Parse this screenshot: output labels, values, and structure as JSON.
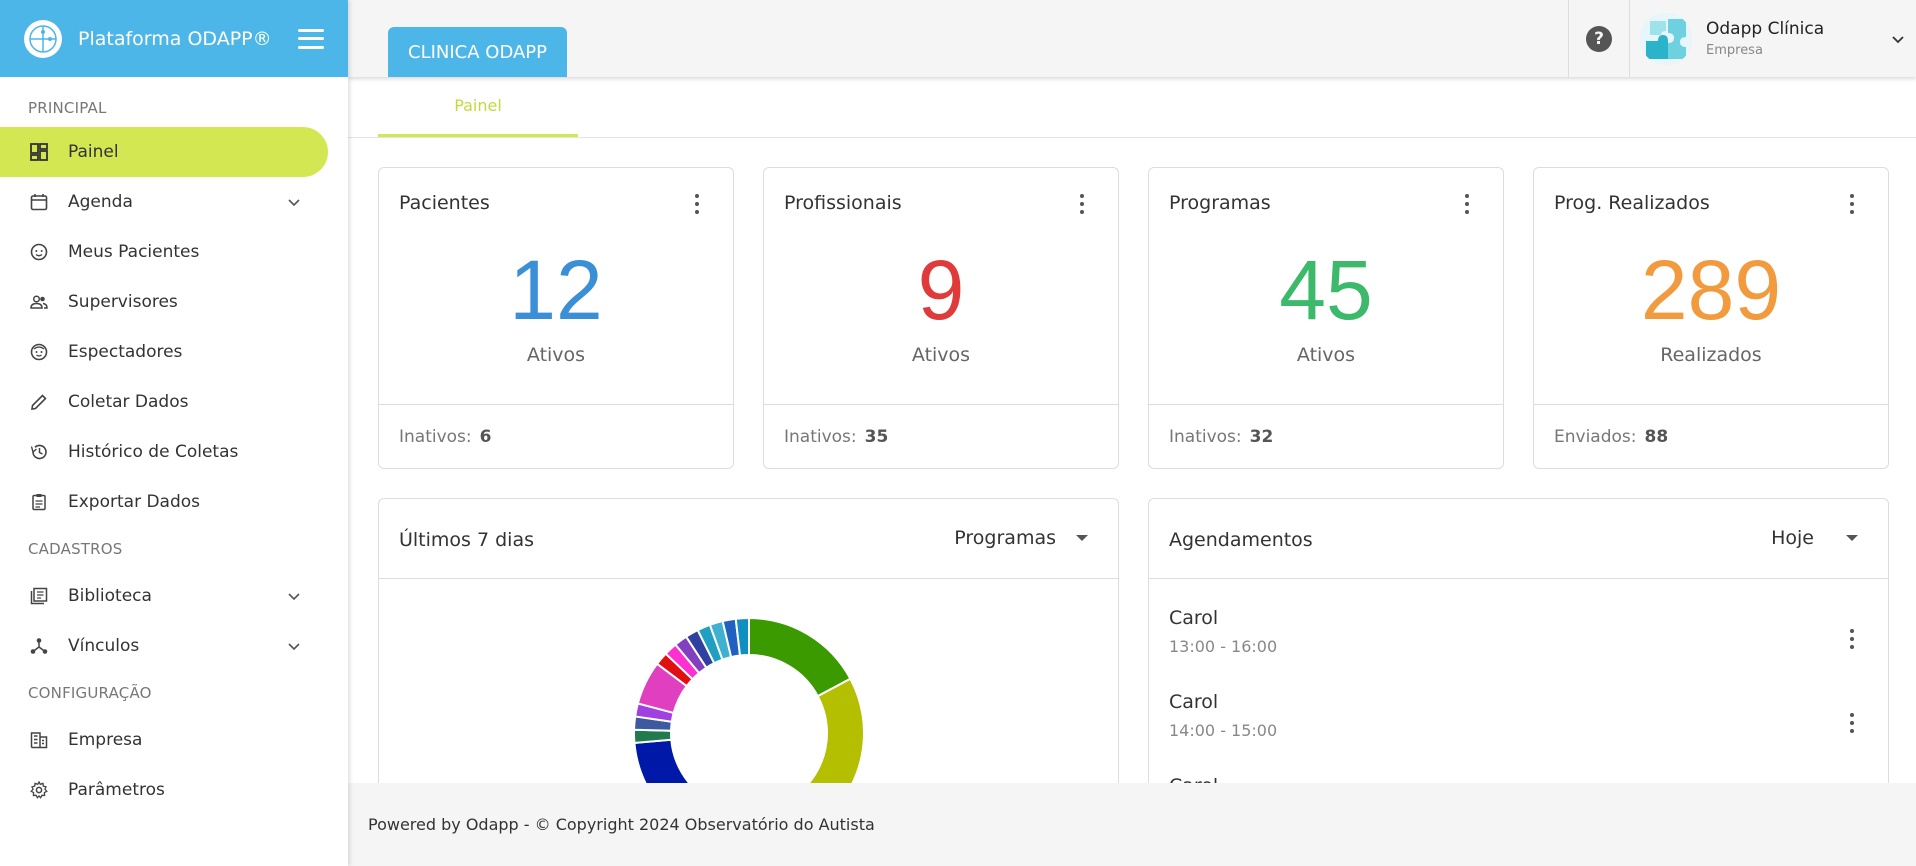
{
  "brand": {
    "title": "Plataforma ODAPP®"
  },
  "sidebar": {
    "sections": {
      "principal": "PRINCIPAL",
      "cadastros": "CADASTROS",
      "configuracao": "CONFIGURAÇÃO"
    },
    "items": [
      {
        "label": "Painel",
        "icon": "dashboard-icon"
      },
      {
        "label": "Agenda",
        "icon": "calendar-icon"
      },
      {
        "label": "Meus Pacientes",
        "icon": "face-icon"
      },
      {
        "label": "Supervisores",
        "icon": "people-icon"
      },
      {
        "label": "Espectadores",
        "icon": "smile-icon"
      },
      {
        "label": "Coletar Dados",
        "icon": "pencil-icon"
      },
      {
        "label": "Histórico de Coletas",
        "icon": "history-icon"
      },
      {
        "label": "Exportar Dados",
        "icon": "clipboard-icon"
      },
      {
        "label": "Biblioteca",
        "icon": "library-icon"
      },
      {
        "label": "Vínculos",
        "icon": "hub-icon"
      },
      {
        "label": "Empresa",
        "icon": "building-icon"
      },
      {
        "label": "Parâmetros",
        "icon": "gear-icon"
      }
    ]
  },
  "header": {
    "company_tab": "CLINICA ODAPP",
    "help": "?",
    "user": {
      "name": "Odapp Clínica",
      "role": "Empresa"
    }
  },
  "main": {
    "subtab": "Painel",
    "stats": [
      {
        "title": "Pacientes",
        "value": "12",
        "label": "Ativos",
        "footer_label": "Inativos:",
        "footer_value": "6",
        "color": "#3a8fd6"
      },
      {
        "title": "Profissionais",
        "value": "9",
        "label": "Ativos",
        "footer_label": "Inativos:",
        "footer_value": "35",
        "color": "#e03b3b"
      },
      {
        "title": "Programas",
        "value": "45",
        "label": "Ativos",
        "footer_label": "Inativos:",
        "footer_value": "32",
        "color": "#3cb96a"
      },
      {
        "title": "Prog. Realizados",
        "value": "289",
        "label": "Realizados",
        "footer_label": "Enviados:",
        "footer_value": "88",
        "color": "#f19a3e"
      }
    ],
    "chart_panel": {
      "title": "Últimos 7 dias",
      "filter": "Programas"
    },
    "appointments": {
      "title": "Agendamentos",
      "filter": "Hoje",
      "items": [
        {
          "name": "Carol",
          "time": "13:00 - 16:00"
        },
        {
          "name": "Carol",
          "time": "14:00 - 15:00"
        },
        {
          "name": "Carol",
          "time": ""
        }
      ]
    }
  },
  "chart_data": {
    "type": "pie",
    "title": "Últimos 7 dias",
    "legend": "none",
    "series": [
      {
        "name": "",
        "values": [
          14,
          18,
          3,
          25,
          1.5,
          1.5,
          1.5,
          5,
          1.5,
          1.5,
          1.5,
          1.5,
          1.5,
          1.5,
          1.5,
          1.5
        ]
      }
    ],
    "colors": [
      "#3a9a00",
      "#b3bf00",
      "#e02020",
      "#0018a8",
      "#1f7a4d",
      "#3d5aa0",
      "#a040e0",
      "#e040c0",
      "#e01010",
      "#ff30d0",
      "#8040c0",
      "#3040a0",
      "#20a0c0",
      "#40b0d0",
      "#2060c0",
      "#1090c0"
    ],
    "start_angle_deg": 0
  },
  "footer": {
    "text": "Powered by Odapp - © Copyright 2024 Observatório do Autista"
  }
}
